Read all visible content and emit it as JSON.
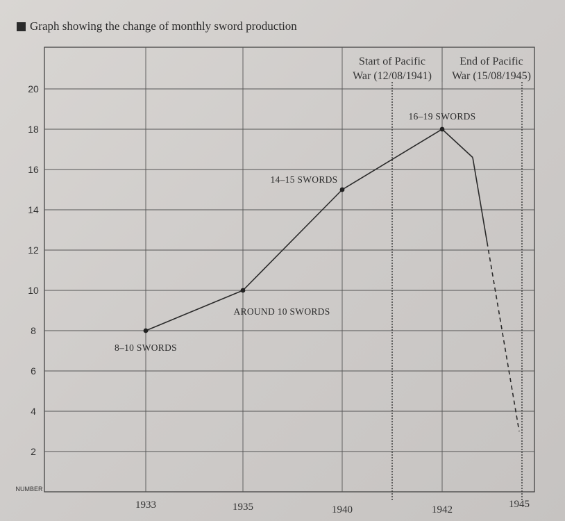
{
  "chart_data": {
    "type": "line",
    "title": "Graph showing the change of monthly sword production",
    "ylabel": "NUMBER",
    "xlabel": "",
    "ylim": [
      0,
      22
    ],
    "yticks": [
      2,
      4,
      6,
      8,
      10,
      12,
      14,
      16,
      18,
      20
    ],
    "x_ticks": [
      "1933",
      "1935",
      "1940",
      "1942",
      "1945"
    ],
    "grid": true,
    "series": [
      {
        "points": [
          {
            "x": "1933",
            "y": 8
          },
          {
            "x": "1935",
            "y": 10
          },
          {
            "x": "1940",
            "y": 15
          },
          {
            "x": "1942",
            "y": 18
          },
          {
            "x": "1943",
            "y": 16.6
          },
          {
            "x": "1945",
            "y": 3
          }
        ],
        "segment_style": [
          "solid",
          "solid",
          "solid",
          "solid",
          "solid-then-dashed"
        ]
      }
    ],
    "data_labels": [
      {
        "x": "1933",
        "text": "8–10 SWORDS"
      },
      {
        "x": "1935",
        "text": "AROUND 10 SWORDS"
      },
      {
        "x": "1940",
        "text": "14–15 SWORDS"
      },
      {
        "x": "1942",
        "text": "16–19 SWORDS"
      }
    ],
    "annotations": [
      {
        "lines": [
          "Start of Pacific",
          "War (12/08/1941)"
        ],
        "style": "dotted-vertical"
      },
      {
        "lines": [
          "End of Pacific",
          "War (15/08/1945)"
        ],
        "style": "dotted-vertical"
      }
    ]
  }
}
